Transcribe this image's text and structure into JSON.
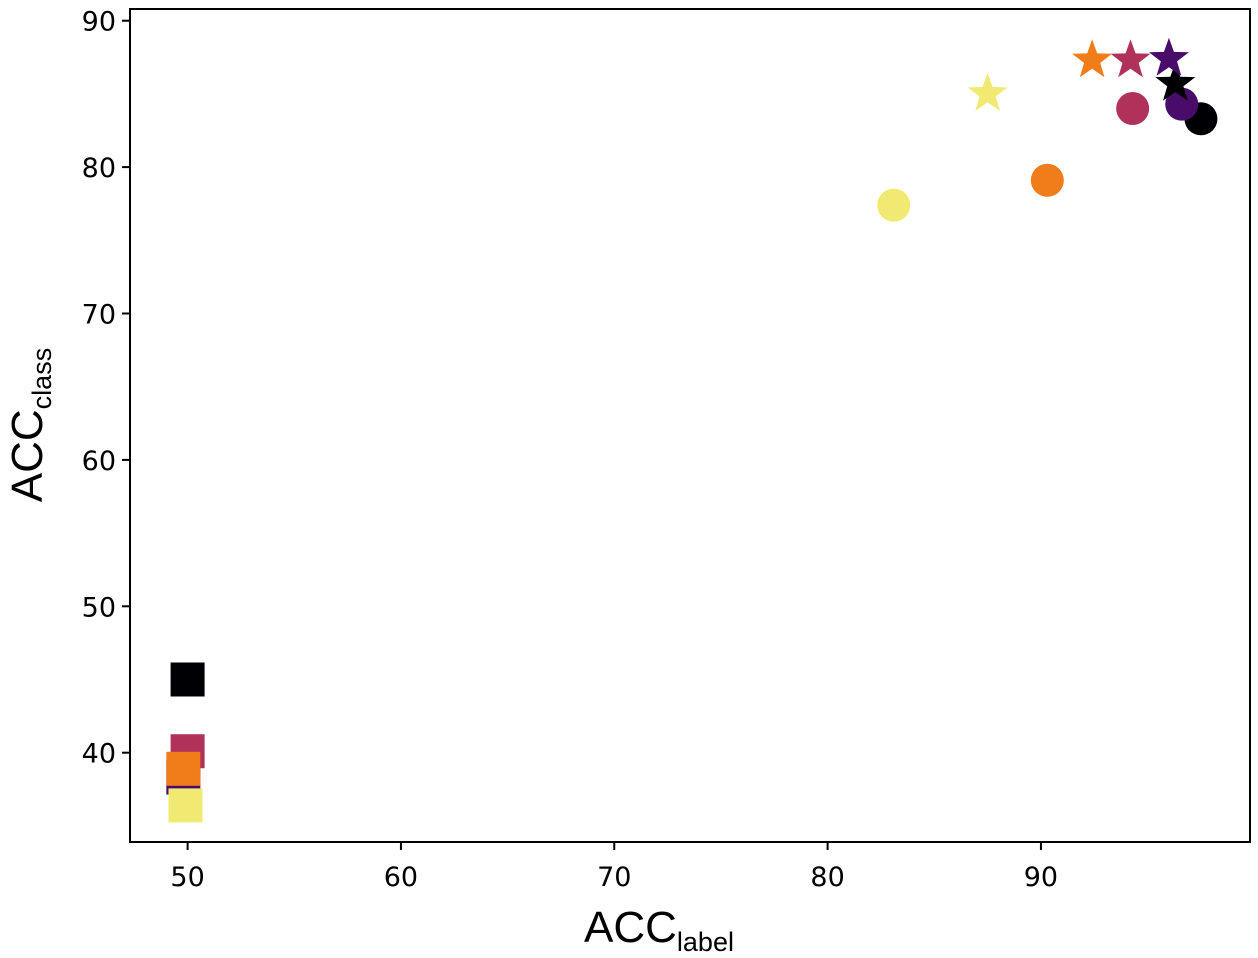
{
  "chart_data": {
    "type": "scatter",
    "title": "",
    "xlabel": {
      "main": "ACC",
      "sub": "label"
    },
    "ylabel": {
      "main": "ACC",
      "sub": "class"
    },
    "xlim": [
      47.3,
      99.8
    ],
    "ylim": [
      33.9,
      90.8
    ],
    "xticks": [
      50,
      60,
      70,
      80,
      90
    ],
    "yticks": [
      40,
      50,
      60,
      70,
      80,
      90
    ],
    "grid": false,
    "legend": null,
    "colors": {
      "black": "#000004",
      "purple": "#4a0c6b",
      "crimson": "#b0325a",
      "orange": "#f07c1a",
      "yellow": "#f0ea72"
    },
    "series": [
      {
        "marker": "square",
        "points": [
          {
            "x": 50.0,
            "y": 45.0,
            "color": "black"
          },
          {
            "x": 49.8,
            "y": 38.3,
            "color": "purple"
          },
          {
            "x": 50.0,
            "y": 40.1,
            "color": "crimson"
          },
          {
            "x": 49.8,
            "y": 38.9,
            "color": "orange"
          },
          {
            "x": 49.9,
            "y": 36.4,
            "color": "yellow"
          }
        ]
      },
      {
        "marker": "circle",
        "points": [
          {
            "x": 97.5,
            "y": 83.3,
            "color": "black"
          },
          {
            "x": 96.6,
            "y": 84.3,
            "color": "purple"
          },
          {
            "x": 94.3,
            "y": 84.0,
            "color": "crimson"
          },
          {
            "x": 90.3,
            "y": 79.1,
            "color": "orange"
          },
          {
            "x": 83.1,
            "y": 77.4,
            "color": "yellow"
          }
        ]
      },
      {
        "marker": "star",
        "points": [
          {
            "x": 96.3,
            "y": 85.7,
            "color": "black"
          },
          {
            "x": 96.0,
            "y": 87.4,
            "color": "purple"
          },
          {
            "x": 94.2,
            "y": 87.3,
            "color": "crimson"
          },
          {
            "x": 92.4,
            "y": 87.3,
            "color": "orange"
          },
          {
            "x": 87.5,
            "y": 85.0,
            "color": "yellow"
          }
        ]
      }
    ]
  }
}
